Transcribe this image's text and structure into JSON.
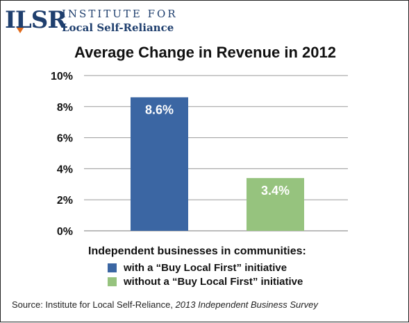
{
  "logo": {
    "mark": "ILSR",
    "line1": "INSTITUTE FOR",
    "line2": "Local Self-Reliance"
  },
  "colors": {
    "brand": "#1f3f6e",
    "accent": "#e06b1c"
  },
  "chart_data": {
    "type": "bar",
    "title": "Average Change in Revenue in 2012",
    "categories": [
      "with a “Buy Local First” initiative",
      "without a “Buy Local First” initiative"
    ],
    "values": [
      8.6,
      3.4
    ],
    "value_labels": [
      "8.6%",
      "3.4%"
    ],
    "colors": [
      "#3b66a3",
      "#96c37e"
    ],
    "ylim": [
      0,
      10
    ],
    "yticks": [
      0,
      2,
      4,
      6,
      8,
      10
    ],
    "ytick_labels": [
      "0%",
      "2%",
      "4%",
      "6%",
      "8%",
      "10%"
    ],
    "grid": true,
    "xlabel": "",
    "ylabel": "",
    "legend": {
      "title": "Independent businesses in communities:",
      "placement": "bottom"
    }
  },
  "source": {
    "prefix": "Source: Institute for Local Self-Reliance, ",
    "title": "2013 Independent Business Survey"
  }
}
